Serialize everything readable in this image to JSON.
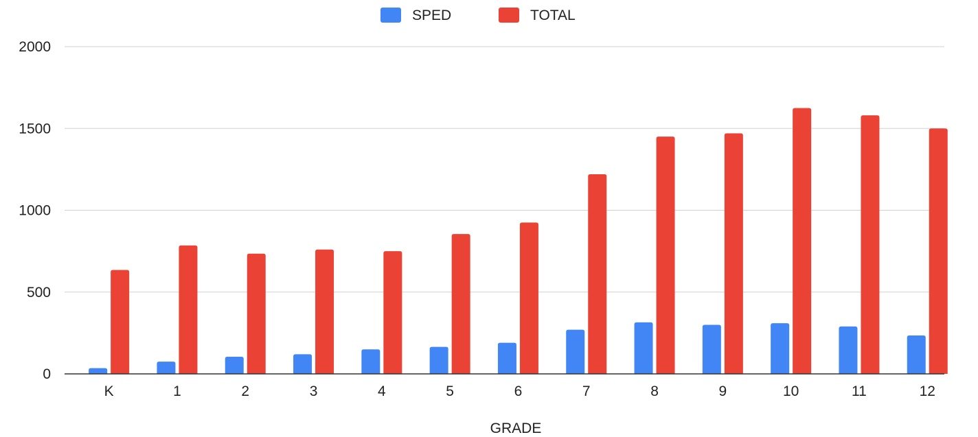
{
  "chart_data": {
    "type": "bar",
    "title": "",
    "xlabel": "GRADE",
    "ylabel": "",
    "categories": [
      "K",
      "1",
      "2",
      "3",
      "4",
      "5",
      "6",
      "7",
      "8",
      "9",
      "10",
      "11",
      "12"
    ],
    "series": [
      {
        "name": "SPED",
        "color": "#4285f4",
        "values": [
          35,
          75,
          105,
          120,
          150,
          165,
          190,
          270,
          315,
          300,
          310,
          290,
          235
        ]
      },
      {
        "name": "TOTAL",
        "color": "#ea4335",
        "values": [
          635,
          785,
          735,
          760,
          750,
          855,
          925,
          1220,
          1450,
          1470,
          1625,
          1580,
          1500
        ]
      }
    ],
    "ylim": [
      0,
      2000
    ],
    "yticks": [
      "0",
      "500",
      "1000",
      "1500",
      "2000"
    ],
    "grid": true,
    "legend_position": "top"
  }
}
